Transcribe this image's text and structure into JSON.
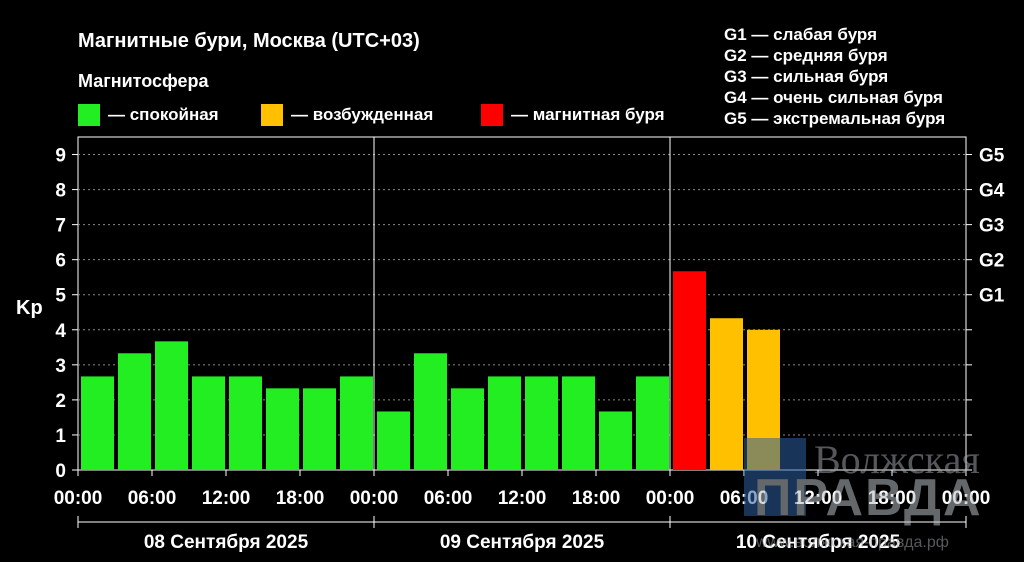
{
  "chart_data": {
    "type": "bar",
    "title": "Магнитные бури, Москва (UTC+03)",
    "subtitle": "Магнитосфера",
    "ylabel": "Kp",
    "ylim": [
      0,
      9.5
    ],
    "y_ticks": [
      "0",
      "1",
      "2",
      "3",
      "4",
      "5",
      "6",
      "7",
      "8",
      "9"
    ],
    "right_ticks": [
      {
        "label": "G1",
        "value": 5
      },
      {
        "label": "G2",
        "value": 6
      },
      {
        "label": "G3",
        "value": 7
      },
      {
        "label": "G4",
        "value": 8
      },
      {
        "label": "G5",
        "value": 9
      }
    ],
    "x_ticks": [
      "00:00",
      "06:00",
      "12:00",
      "18:00",
      "00:00",
      "06:00",
      "12:00",
      "18:00",
      "00:00",
      "06:00",
      "12:00",
      "18:00",
      "00:00"
    ],
    "days": [
      "08 Сентября 2025",
      "09 Сентября 2025",
      "10 Сентября 2025"
    ],
    "legend": [
      {
        "label": "— спокойная",
        "color": "#22ee22"
      },
      {
        "label": "— возбужденная",
        "color": "#ffc000"
      },
      {
        "label": "— магнитная буря",
        "color": "#ff0000"
      }
    ],
    "g_levels": [
      "G1 — слабая буря",
      "G2 — средняя буря",
      "G3 — сильная буря",
      "G4 — очень сильная буря",
      "G5 — экстремальная буря"
    ],
    "values": [
      2.67,
      3.33,
      3.67,
      2.67,
      2.67,
      2.33,
      2.33,
      2.67,
      1.67,
      3.33,
      2.33,
      2.67,
      2.67,
      2.67,
      1.67,
      2.67,
      5.67,
      4.33,
      4.0
    ],
    "colors": {
      "quiet": "#22ee22",
      "active": "#ffc000",
      "storm": "#ff0000"
    },
    "grid": true
  },
  "watermark": {
    "line1": "Волжская",
    "line2": "ПРАВДА",
    "url": "www.волжская-правда.рф"
  }
}
